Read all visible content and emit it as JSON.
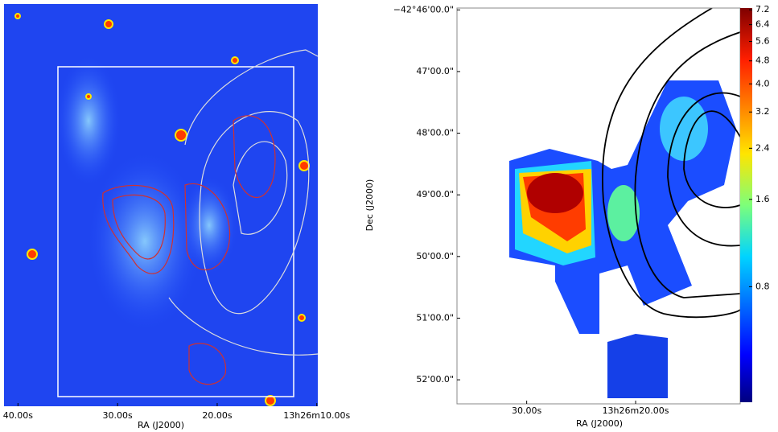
{
  "chart_data": [
    {
      "type": "image",
      "xlabel": "RA (J2000)",
      "xlim": [
        41.4,
        9.9
      ],
      "xticks": [
        {
          "value": 40,
          "label": "40.00s"
        },
        {
          "value": 30,
          "label": "30.00s"
        },
        {
          "value": 20,
          "label": "20.00s"
        },
        {
          "value": 10,
          "label": "13h26m10.00s"
        }
      ]
    },
    {
      "type": "heatmap",
      "xlabel": "RA (J2000)",
      "ylabel": "Dec (J2000)",
      "xlim": [
        36.4,
        10.4
      ],
      "xticks": [
        {
          "value": 30,
          "label": "30.00s"
        },
        {
          "value": 20,
          "label": "13h26m20.00s"
        }
      ],
      "ylim": [
        52.39,
        45.97
      ],
      "yticks": [
        {
          "value": 46,
          "label": "−42°46'00.0\""
        },
        {
          "value": 47,
          "label": "47'00.0\""
        },
        {
          "value": 48,
          "label": "48'00.0\""
        },
        {
          "value": 49,
          "label": "49'00.0\""
        },
        {
          "value": 50,
          "label": "50'00.0\""
        },
        {
          "value": 51,
          "label": "51'00.0\""
        },
        {
          "value": 52,
          "label": "52'00.0\""
        }
      ],
      "colorbar": {
        "scale": "log",
        "clim": [
          0.32,
          7.3
        ],
        "colormap": "jet",
        "ticks": [
          7.2,
          6.4,
          5.6,
          4.8,
          {
            "value": 4,
            "label": "4.0"
          },
          3.2,
          2.4,
          1.6,
          0.8
        ]
      }
    }
  ]
}
